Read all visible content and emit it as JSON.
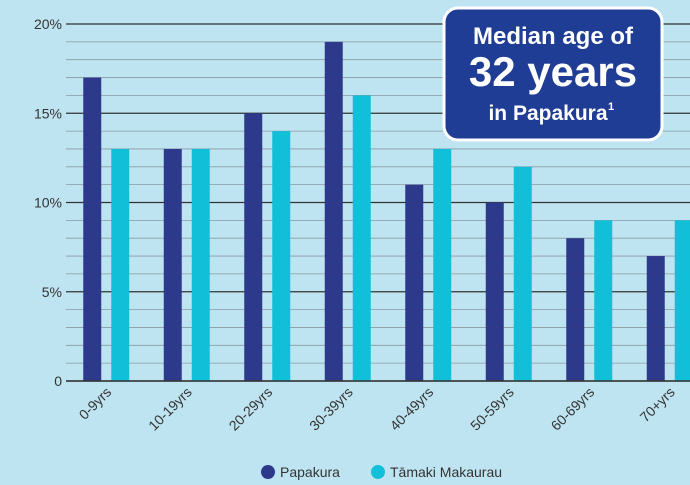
{
  "chart_data": {
    "type": "bar",
    "categories": [
      "0-9yrs",
      "10-19yrs",
      "20-29yrs",
      "30-39yrs",
      "40-49yrs",
      "50-59yrs",
      "60-69yrs",
      "70+yrs"
    ],
    "series": [
      {
        "name": "Papakura",
        "color": "#2d3a8c",
        "values": [
          17,
          13,
          15,
          19,
          11,
          10,
          8,
          7
        ]
      },
      {
        "name": "Tāmaki Makaurau",
        "color": "#12bfd8",
        "values": [
          13,
          13,
          14,
          16,
          13,
          12,
          9,
          9
        ]
      }
    ],
    "ylim": [
      0,
      20
    ],
    "yticks": [
      0,
      {
        "value": 5,
        "label": "5%"
      },
      {
        "value": 10,
        "label": "10%"
      },
      {
        "value": 15,
        "label": "15%"
      },
      {
        "value": 20,
        "label": "20%"
      }
    ],
    "y_minor_ticks": [
      1,
      2,
      3,
      4,
      6,
      7,
      8,
      9,
      11,
      12,
      13,
      14,
      16,
      17,
      18,
      19
    ],
    "grid": true,
    "legend": "bottom",
    "annotation": {
      "line1": "Median age of",
      "line2": "32 years",
      "line3": "in Papakura",
      "footnote": "1"
    }
  }
}
